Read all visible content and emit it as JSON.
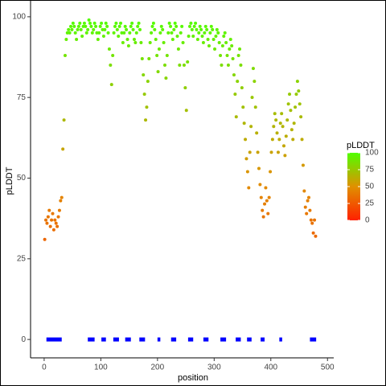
{
  "chart_data": {
    "type": "scatter",
    "x_label": "position",
    "y_label": "pLDDT",
    "xlim": [
      -24,
      511
    ],
    "ylim": [
      -5.7,
      105.2
    ],
    "xticks": [
      0,
      100,
      200,
      300,
      400,
      500
    ],
    "yticks": [
      0,
      25,
      50,
      75,
      100
    ],
    "grid": false,
    "legend_title": "pLDDT",
    "colorbar_lim": [
      0,
      100
    ],
    "colorbar_ticks": [
      0,
      25,
      50,
      75,
      100
    ],
    "colors": [
      "#ff2000",
      "#e09000",
      "#50ff00"
    ],
    "region_color": "#0000ff",
    "region_y": 0,
    "regions": [
      [
        4,
        31
      ],
      [
        77,
        89
      ],
      [
        101,
        109
      ],
      [
        122,
        132
      ],
      [
        143,
        153
      ],
      [
        168,
        178
      ],
      [
        200,
        205
      ],
      [
        224,
        233
      ],
      [
        254,
        263
      ],
      [
        281,
        290
      ],
      [
        311,
        321
      ],
      [
        338,
        347
      ],
      [
        358,
        366
      ],
      [
        382,
        389
      ],
      [
        415,
        420
      ],
      [
        469,
        480
      ]
    ],
    "x": [
      1,
      3,
      5,
      7,
      9,
      11,
      13,
      15,
      17,
      19,
      21,
      23,
      25,
      27,
      29,
      31,
      33,
      35,
      37,
      39,
      41,
      43,
      45,
      47,
      49,
      51,
      53,
      55,
      57,
      59,
      61,
      63,
      65,
      67,
      69,
      71,
      73,
      75,
      77,
      79,
      81,
      83,
      85,
      87,
      89,
      91,
      93,
      95,
      97,
      99,
      101,
      103,
      105,
      107,
      109,
      111,
      113,
      115,
      117,
      119,
      121,
      123,
      125,
      127,
      129,
      131,
      133,
      135,
      137,
      139,
      141,
      143,
      145,
      147,
      149,
      151,
      153,
      155,
      157,
      159,
      161,
      163,
      165,
      167,
      169,
      171,
      173,
      175,
      177,
      179,
      181,
      183,
      185,
      187,
      189,
      191,
      193,
      195,
      197,
      199,
      201,
      203,
      205,
      207,
      209,
      211,
      213,
      215,
      217,
      219,
      221,
      223,
      225,
      227,
      229,
      231,
      233,
      235,
      237,
      239,
      241,
      243,
      245,
      247,
      249,
      251,
      253,
      255,
      257,
      259,
      261,
      263,
      265,
      267,
      269,
      271,
      273,
      275,
      277,
      279,
      281,
      283,
      285,
      287,
      289,
      291,
      293,
      295,
      297,
      299,
      301,
      303,
      305,
      307,
      309,
      311,
      313,
      315,
      317,
      319,
      321,
      323,
      325,
      327,
      329,
      331,
      333,
      335,
      337,
      339,
      341,
      343,
      345,
      347,
      349,
      351,
      353,
      355,
      357,
      359,
      361,
      363,
      365,
      367,
      369,
      371,
      373,
      375,
      377,
      379,
      381,
      383,
      385,
      387,
      389,
      391,
      393,
      395,
      397,
      399,
      401,
      403,
      405,
      407,
      409,
      411,
      413,
      415,
      417,
      419,
      421,
      423,
      425,
      427,
      429,
      431,
      433,
      435,
      437,
      439,
      441,
      443,
      445,
      447,
      449,
      451,
      453,
      455,
      457,
      459,
      461,
      463,
      465,
      467,
      469,
      471,
      473,
      475,
      477,
      479
    ],
    "values": [
      31,
      37,
      36,
      38,
      40,
      35,
      37,
      39,
      34,
      37,
      36,
      35,
      38,
      40,
      43,
      44,
      59,
      68,
      88,
      93,
      95,
      96,
      95,
      97,
      96,
      98,
      97,
      95,
      93,
      96,
      97,
      98,
      96,
      94,
      97,
      98,
      97,
      95,
      96,
      99,
      98,
      97,
      95,
      96,
      98,
      97,
      95,
      93,
      95,
      97,
      98,
      96,
      94,
      96,
      98,
      97,
      95,
      90,
      85,
      79,
      88,
      95,
      97,
      98,
      96,
      94,
      97,
      98,
      95,
      92,
      95,
      97,
      96,
      93,
      91,
      95,
      97,
      98,
      96,
      93,
      92,
      95,
      97,
      98,
      96,
      92,
      87,
      82,
      76,
      68,
      72,
      80,
      87,
      92,
      95,
      97,
      98,
      96,
      93,
      88,
      83,
      90,
      95,
      97,
      96,
      92,
      85,
      81,
      88,
      95,
      98,
      97,
      95,
      93,
      96,
      98,
      97,
      94,
      90,
      85,
      95,
      97,
      92,
      85,
      78,
      71,
      86,
      94,
      97,
      98,
      96,
      94,
      97,
      98,
      96,
      93,
      95,
      97,
      96,
      94,
      92,
      95,
      97,
      96,
      93,
      91,
      95,
      97,
      96,
      93,
      90,
      94,
      96,
      95,
      92,
      88,
      85,
      91,
      94,
      95,
      92,
      88,
      85,
      90,
      93,
      91,
      87,
      82,
      76,
      69,
      80,
      88,
      90,
      85,
      78,
      72,
      67,
      62,
      56,
      52,
      47,
      58,
      66,
      75,
      84,
      80,
      72,
      64,
      58,
      53,
      48,
      44,
      40,
      38,
      42,
      47,
      43,
      39,
      44,
      52,
      58,
      62,
      66,
      70,
      68,
      64,
      58,
      62,
      67,
      70,
      66,
      60,
      57,
      63,
      68,
      73,
      76,
      71,
      65,
      62,
      67,
      72,
      76,
      80,
      77,
      73,
      69,
      62,
      54,
      46,
      41,
      39,
      43,
      44,
      40,
      37,
      36,
      33,
      37,
      32
    ]
  }
}
